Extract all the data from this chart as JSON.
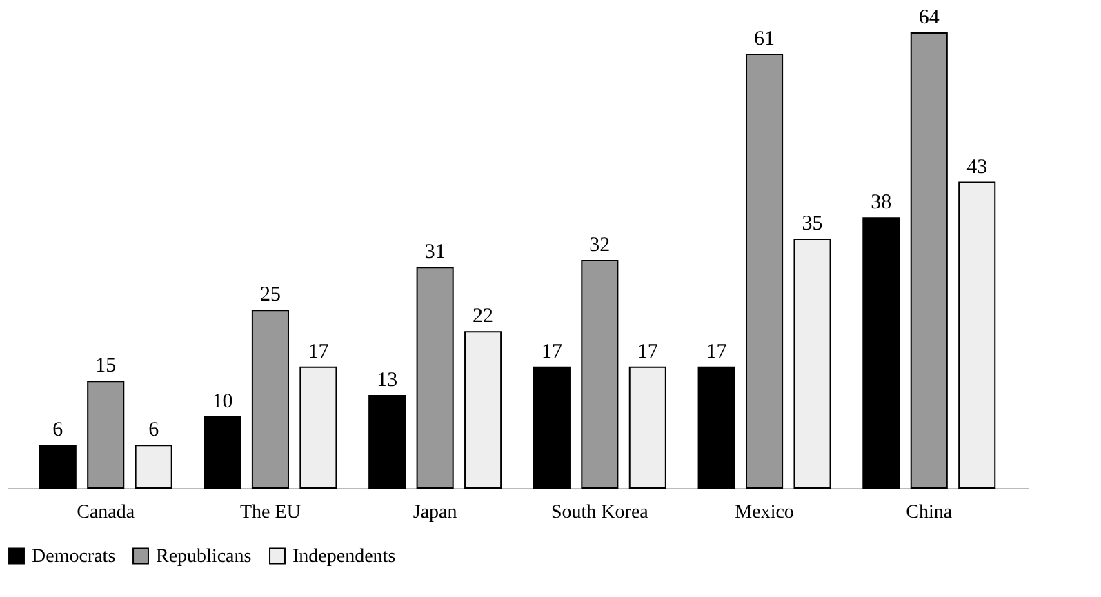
{
  "chart_data": {
    "type": "bar",
    "categories": [
      "Canada",
      "The EU",
      "Japan",
      "South Korea",
      "Mexico",
      "China"
    ],
    "series": [
      {
        "name": "Democrats",
        "color": "#000000",
        "values": [
          6,
          10,
          13,
          17,
          17,
          38
        ]
      },
      {
        "name": "Republicans",
        "color": "#999999",
        "values": [
          15,
          25,
          31,
          32,
          61,
          64
        ]
      },
      {
        "name": "Independents",
        "color": "#eeeeee",
        "values": [
          6,
          17,
          22,
          17,
          35,
          43
        ]
      }
    ],
    "data_labels": true,
    "legend": "bottom",
    "grid": false
  }
}
